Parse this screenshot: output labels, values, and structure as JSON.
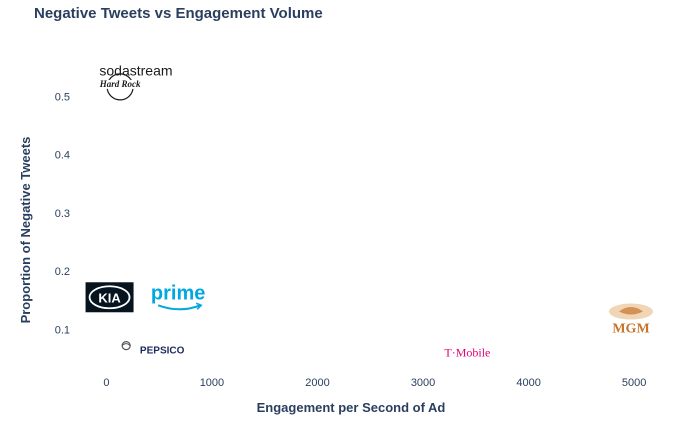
{
  "chart_data": {
    "type": "scatter",
    "title": "Negative Tweets vs Engagement Volume",
    "xlabel": "Engagement per Second of Ad",
    "ylabel": "Proportion of Negative Tweets",
    "xlim": [
      -250,
      5150
    ],
    "ylim": [
      0.03,
      0.58
    ],
    "x_ticks": [
      0,
      1000,
      2000,
      3000,
      4000,
      5000
    ],
    "y_ticks": [
      0.1,
      0.2,
      0.3,
      0.4,
      0.5
    ],
    "x_tick_labels": [
      "0",
      "1000",
      "2000",
      "3000",
      "4000",
      "5000"
    ],
    "y_tick_labels": [
      "0.1",
      "0.2",
      "0.3",
      "0.4",
      "0.5"
    ],
    "grid": false,
    "markers": "brand logos",
    "points": [
      {
        "label": "sodastream",
        "x": 280,
        "y": 0.545,
        "logo": "sodastream-logo",
        "color": "#1a1a1a"
      },
      {
        "label": "Hard Rock",
        "x": 130,
        "y": 0.52,
        "logo": "hardrock-logo",
        "color": "#1a1a1a"
      },
      {
        "label": "KIA",
        "x": 30,
        "y": 0.155,
        "logo": "kia-logo",
        "color": "#05141f"
      },
      {
        "label": "prime",
        "x": 680,
        "y": 0.155,
        "logo": "prime-logo",
        "color": "#00a8e1"
      },
      {
        "label": "PEPSICO",
        "x": 500,
        "y": 0.065,
        "logo": "pepsico-logo",
        "color": "#1c2b5e"
      },
      {
        "label": "T·Mobile",
        "x": 3420,
        "y": 0.06,
        "logo": "tmobile-logo",
        "color": "#e20074"
      },
      {
        "label": "MGM",
        "x": 4970,
        "y": 0.115,
        "logo": "mgm-logo",
        "color": "#c8742a"
      }
    ]
  }
}
